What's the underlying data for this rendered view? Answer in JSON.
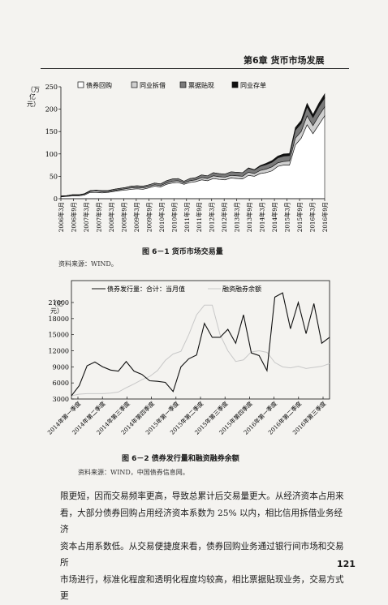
{
  "header": {
    "chapter": "第6章   货币市场发展"
  },
  "figure1": {
    "caption": "图 6－1   货币市场交易量",
    "source": "资料来源：WIND。",
    "unit": "（万亿元）",
    "chart_data": {
      "type": "area",
      "title": "",
      "ylabel": "万亿元",
      "ylim": [
        0,
        250
      ],
      "y_ticks": [
        "0",
        "50",
        "100",
        "150",
        "200",
        "250"
      ],
      "x_tick_labels": [
        "2006年3月",
        "2006年9月",
        "2007年3月",
        "2007年9月",
        "2008年3月",
        "2008年9月",
        "2009年3月",
        "2009年9月",
        "2010年3月",
        "2010年9月",
        "2011年3月",
        "2011年9月",
        "2012年3月",
        "2012年9月",
        "2013年3月",
        "2013年9月",
        "2014年3月",
        "2014年9月",
        "2015年3月",
        "2015年9月",
        "2016年3月",
        "2016年9月"
      ],
      "stacked": true,
      "legend_position": "top",
      "series": [
        {
          "name": "债券回购",
          "color": "#ffffff",
          "values": [
            4,
            5,
            6,
            6,
            8,
            14,
            14,
            13,
            14,
            16,
            18,
            19,
            21,
            22,
            21,
            24,
            28,
            26,
            32,
            35,
            36,
            32,
            36,
            38,
            42,
            40,
            45,
            43,
            42,
            46,
            45,
            44,
            52,
            50,
            56,
            58,
            62,
            72,
            75,
            75,
            120,
            135,
            165,
            145,
            165,
            185
          ]
        },
        {
          "name": "同业拆借",
          "color": "#cfcfcf",
          "values": [
            1,
            1,
            2,
            2,
            2,
            2,
            3,
            3,
            2,
            2,
            2,
            3,
            3,
            3,
            3,
            3,
            3,
            3,
            3,
            4,
            4,
            3,
            4,
            4,
            5,
            5,
            6,
            6,
            6,
            6,
            6,
            6,
            7,
            6,
            7,
            8,
            9,
            8,
            8,
            9,
            15,
            15,
            20,
            18,
            20,
            20
          ]
        },
        {
          "name": "票据贴现",
          "color": "#7a7a7a",
          "values": [
            1,
            1,
            1,
            1,
            1,
            2,
            2,
            2,
            2,
            3,
            3,
            3,
            4,
            4,
            4,
            4,
            4,
            4,
            5,
            5,
            5,
            4,
            5,
            5,
            6,
            6,
            7,
            7,
            7,
            8,
            8,
            8,
            9,
            8,
            9,
            10,
            10,
            11,
            12,
            12,
            18,
            18,
            20,
            18,
            20,
            20
          ]
        },
        {
          "name": "同业存单",
          "color": "#111111",
          "values": [
            0,
            0,
            0,
            0,
            0,
            0,
            0,
            0,
            0,
            0,
            0,
            0,
            0,
            0,
            0,
            0,
            0,
            0,
            0,
            0,
            0,
            0,
            0,
            0,
            0,
            0,
            0,
            0,
            0,
            0,
            0,
            0,
            1,
            1,
            2,
            3,
            4,
            4,
            5,
            5,
            6,
            7,
            8,
            7,
            8,
            9
          ]
        }
      ]
    }
  },
  "figure2": {
    "caption": "图 6－2   债券发行量和融资融券余额",
    "source": "资料来源：WIND，中国债券信息网。",
    "unit": "（亿元）",
    "chart_data": {
      "type": "line",
      "title": "",
      "ylabel": "亿元",
      "ylim": [
        3000,
        21000
      ],
      "y_ticks": [
        "3000",
        "6000",
        "9000",
        "12000",
        "15000",
        "18000",
        "21000"
      ],
      "x_tick_labels": [
        "2014年第一季度",
        "2014年第二季度",
        "2014年第三季度",
        "2014年第四季度",
        "2015年第一季度",
        "2015年第二季度",
        "2015年第三季度",
        "2015年第四季度",
        "2016年第一季度",
        "2016年第二季度",
        "2016年第三季度"
      ],
      "legend_position": "top",
      "series": [
        {
          "name": "债券发行量：合计：当月值",
          "color": "#111111",
          "style": "solid",
          "values": [
            3600,
            5500,
            9200,
            9900,
            9000,
            8400,
            8200,
            10000,
            8200,
            7600,
            6400,
            6300,
            6100,
            4400,
            9000,
            10500,
            11200,
            17100,
            14500,
            14500,
            16000,
            13400,
            18700,
            11600,
            11100,
            8300,
            22000,
            22800,
            16100,
            21000,
            15200,
            20800,
            13400,
            14500
          ]
        },
        {
          "name": "融资融券余额",
          "color": "#c8c8c8",
          "style": "solid",
          "values": [
            3600,
            3900,
            4000,
            4000,
            4000,
            4100,
            4300,
            5100,
            5800,
            6600,
            7200,
            8300,
            10200,
            11400,
            11900,
            15000,
            18700,
            20500,
            20500,
            15000,
            12000,
            10000,
            10300,
            11800,
            12000,
            11700,
            9800,
            9000,
            8800,
            9100,
            8700,
            8900,
            9100,
            9600
          ]
        }
      ]
    }
  },
  "body_text": [
    "限更短，因而交易频率更高，导致总累计后交易量更大。从经济资本占用来",
    "看，大部分债券回购占用经济资本系数为 25% 以内，相比信用拆借业务经济",
    "资本占用系数低。从交易便捷度来看，债券回购业务通过银行间市场和交易所",
    "市场进行，标准化程度和透明化程度均较高，相比票据贴现业务，交易方式更"
  ],
  "page_number": "121"
}
